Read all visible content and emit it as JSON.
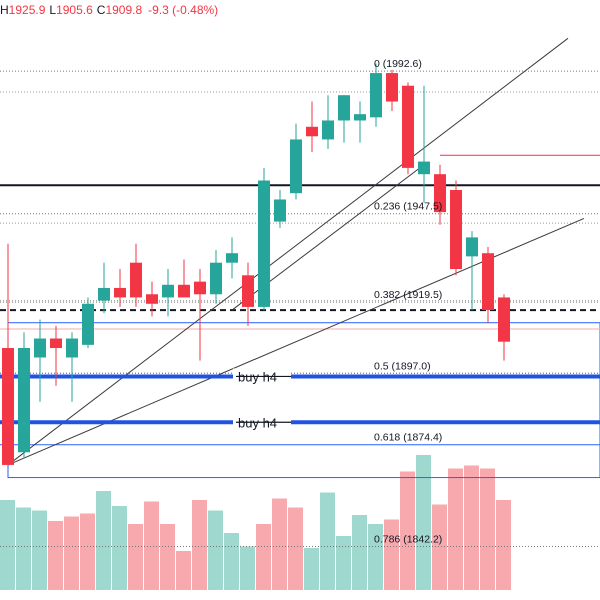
{
  "header": {
    "high_label": "H",
    "high_value": "1925.9",
    "low_label": "L",
    "low_value": "1905.6",
    "close_label": "C",
    "close_value": "1909.8",
    "change_value": "-9.3 (-0.48%)"
  },
  "colors": {
    "up": "#26a69a",
    "down": "#f23645",
    "up_volume": "#9fd8cf",
    "down_volume": "#f7a9ae",
    "fib_label": "#131722",
    "fib_blue": "#2962ff",
    "buy_zone": "#1e53e5"
  },
  "chart_data": {
    "type": "candlestick",
    "y_axis": {
      "min": 1830,
      "max": 2005,
      "scale": "linear",
      "grid": false
    },
    "candles": [
      {
        "open": 1905.0,
        "high": 1938.0,
        "low": 1868.0,
        "close": 1868.0,
        "color": "down"
      },
      {
        "open": 1872.0,
        "high": 1910.0,
        "low": 1870.0,
        "close": 1905.0,
        "color": "up"
      },
      {
        "open": 1902.0,
        "high": 1914.0,
        "low": 1888.0,
        "close": 1908.0,
        "color": "up"
      },
      {
        "open": 1908.0,
        "high": 1912.0,
        "low": 1893.0,
        "close": 1905.0,
        "color": "down"
      },
      {
        "open": 1902.0,
        "high": 1910.0,
        "low": 1888.0,
        "close": 1908.0,
        "color": "up"
      },
      {
        "open": 1906.0,
        "high": 1921.0,
        "low": 1905.0,
        "close": 1919.0,
        "color": "up"
      },
      {
        "open": 1920.0,
        "high": 1932.0,
        "low": 1916.0,
        "close": 1924.0,
        "color": "up"
      },
      {
        "open": 1924.0,
        "high": 1930.0,
        "low": 1918.0,
        "close": 1921.0,
        "color": "down"
      },
      {
        "open": 1921.0,
        "high": 1938.0,
        "low": 1918.0,
        "close": 1932.0,
        "color": "down"
      },
      {
        "open": 1922.0,
        "high": 1926.0,
        "low": 1915.0,
        "close": 1919.0,
        "color": "down"
      },
      {
        "open": 1921.0,
        "high": 1930.0,
        "low": 1915.0,
        "close": 1925.0,
        "color": "up"
      },
      {
        "open": 1925.0,
        "high": 1933.0,
        "low": 1922.0,
        "close": 1921.0,
        "color": "down"
      },
      {
        "open": 1926.0,
        "high": 1930.0,
        "low": 1901.0,
        "close": 1922.0,
        "color": "down"
      },
      {
        "open": 1922.0,
        "high": 1936.0,
        "low": 1919.0,
        "close": 1932.0,
        "color": "up"
      },
      {
        "open": 1932.0,
        "high": 1940.0,
        "low": 1927.0,
        "close": 1935.0,
        "color": "up"
      },
      {
        "open": 1928.0,
        "high": 1932.0,
        "low": 1912.0,
        "close": 1918.0,
        "color": "down"
      },
      {
        "open": 1918.0,
        "high": 1962.0,
        "low": 1917.0,
        "close": 1958.0,
        "color": "up"
      },
      {
        "open": 1945.0,
        "high": 1955.0,
        "low": 1943.0,
        "close": 1952.0,
        "color": "up"
      },
      {
        "open": 1954.0,
        "high": 1976.0,
        "low": 1952.0,
        "close": 1971.0,
        "color": "up"
      },
      {
        "open": 1975.0,
        "high": 1983.0,
        "low": 1967.0,
        "close": 1972.0,
        "color": "down"
      },
      {
        "open": 1971.0,
        "high": 1985.0,
        "low": 1968.0,
        "close": 1977.0,
        "color": "up"
      },
      {
        "open": 1977.0,
        "high": 1985.0,
        "low": 1970.0,
        "close": 1985.0,
        "color": "up"
      },
      {
        "open": 1977.0,
        "high": 1983.0,
        "low": 1970.0,
        "close": 1979.0,
        "color": "up"
      },
      {
        "open": 1978.0,
        "high": 1995.0,
        "low": 1975.0,
        "close": 1992.0,
        "color": "up"
      },
      {
        "open": 1992.0,
        "high": 1993.0,
        "low": 1980.0,
        "close": 1983.0,
        "color": "down"
      },
      {
        "open": 1988.0,
        "high": 1989.0,
        "low": 1960.0,
        "close": 1962.0,
        "color": "down"
      },
      {
        "open": 1960.0,
        "high": 1988.0,
        "low": 1951.0,
        "close": 1964.0,
        "color": "up"
      },
      {
        "open": 1960.0,
        "high": 1963.0,
        "low": 1944.0,
        "close": 1948.0,
        "color": "down"
      },
      {
        "open": 1955.0,
        "high": 1958.0,
        "low": 1928.0,
        "close": 1930.0,
        "color": "down"
      },
      {
        "open": 1940.0,
        "high": 1942.0,
        "low": 1917.0,
        "close": 1934.0,
        "color": "up"
      },
      {
        "open": 1935.0,
        "high": 1937.0,
        "low": 1913.0,
        "close": 1917.0,
        "color": "down"
      },
      {
        "open": 1921.0,
        "high": 1922.0,
        "low": 1901.0,
        "close": 1907.0,
        "color": "down"
      }
    ],
    "volume": [
      {
        "value": 0.6,
        "color": "up"
      },
      {
        "value": 0.55,
        "color": "up"
      },
      {
        "value": 0.53,
        "color": "up"
      },
      {
        "value": 0.46,
        "color": "down"
      },
      {
        "value": 0.49,
        "color": "down"
      },
      {
        "value": 0.51,
        "color": "down"
      },
      {
        "value": 0.66,
        "color": "up"
      },
      {
        "value": 0.56,
        "color": "up"
      },
      {
        "value": 0.44,
        "color": "down"
      },
      {
        "value": 0.59,
        "color": "down"
      },
      {
        "value": 0.44,
        "color": "down"
      },
      {
        "value": 0.26,
        "color": "down"
      },
      {
        "value": 0.6,
        "color": "down"
      },
      {
        "value": 0.53,
        "color": "up"
      },
      {
        "value": 0.38,
        "color": "up"
      },
      {
        "value": 0.29,
        "color": "up"
      },
      {
        "value": 0.44,
        "color": "down"
      },
      {
        "value": 0.61,
        "color": "down"
      },
      {
        "value": 0.55,
        "color": "down"
      },
      {
        "value": 0.28,
        "color": "up"
      },
      {
        "value": 0.65,
        "color": "up"
      },
      {
        "value": 0.36,
        "color": "up"
      },
      {
        "value": 0.5,
        "color": "up"
      },
      {
        "value": 0.44,
        "color": "up"
      },
      {
        "value": 0.47,
        "color": "down"
      },
      {
        "value": 0.79,
        "color": "down"
      },
      {
        "value": 0.9,
        "color": "up"
      },
      {
        "value": 0.57,
        "color": "down"
      },
      {
        "value": 0.81,
        "color": "down"
      },
      {
        "value": 0.83,
        "color": "down"
      },
      {
        "value": 0.81,
        "color": "down"
      },
      {
        "value": 0.6,
        "color": "down"
      }
    ],
    "fib_levels": [
      {
        "label": "0 (1992.6)",
        "value": 1992.6,
        "style": "dotted",
        "color": "#777777"
      },
      {
        "label": "0.236 (1947.5)",
        "value": 1947.5,
        "style": "dotted",
        "color": "#777777"
      },
      {
        "label": "0.382 (1919.5)",
        "value": 1919.5,
        "style": "dotted",
        "color": "#777777"
      },
      {
        "label": "0.5 (1897.0)",
        "value": 1897.0,
        "style": "dotted",
        "color": "#777777"
      },
      {
        "label": "0.618 (1874.4)",
        "value": 1874.4,
        "style": "solid",
        "color": "#2962ff"
      },
      {
        "label": "0.786 (1842.2)",
        "value": 1842.2,
        "style": "dotted",
        "color": "#777777"
      }
    ],
    "buy_zones": [
      {
        "label": "buy h4",
        "value": 1896.0
      },
      {
        "label": "buy h4",
        "value": 1881.5
      }
    ],
    "horizontal_lines": [
      {
        "value": 1956.5,
        "style": "solid",
        "color": "#131722",
        "width": 2
      },
      {
        "value": 1917.0,
        "style": "dashed",
        "color": "#131722",
        "width": 2
      },
      {
        "value": 1966.0,
        "style": "solid",
        "color": "#f23645",
        "width": 1,
        "start_index": 27
      },
      {
        "value": 1897.0,
        "style": "dotted",
        "color": "#777777",
        "width": 1
      },
      {
        "value": 1911.0,
        "style": "solid",
        "color": "#f7a9ae",
        "width": 1
      },
      {
        "value": 1944.5,
        "style": "dotted",
        "color": "#999999",
        "width": 1
      },
      {
        "value": 1986.0,
        "style": "dotted",
        "color": "#999999",
        "width": 1
      },
      {
        "value": 1920.0,
        "style": "dotted",
        "color": "#999999",
        "width": 1
      }
    ],
    "rectangles": [
      {
        "top": 1913.0,
        "bottom": 1864.0,
        "start_index": 0,
        "color": "#2962ff"
      }
    ],
    "trendlines": [
      {
        "start_index": 0,
        "start_value": 1868.0,
        "end_index": 35,
        "end_value": 2003.0
      },
      {
        "start_index": 0,
        "start_value": 1868.0,
        "end_index": 36,
        "end_value": 1946.0
      },
      {
        "start_index": 14,
        "start_value": 1917.0,
        "end_index": 26,
        "end_value": 1963.0
      }
    ]
  }
}
